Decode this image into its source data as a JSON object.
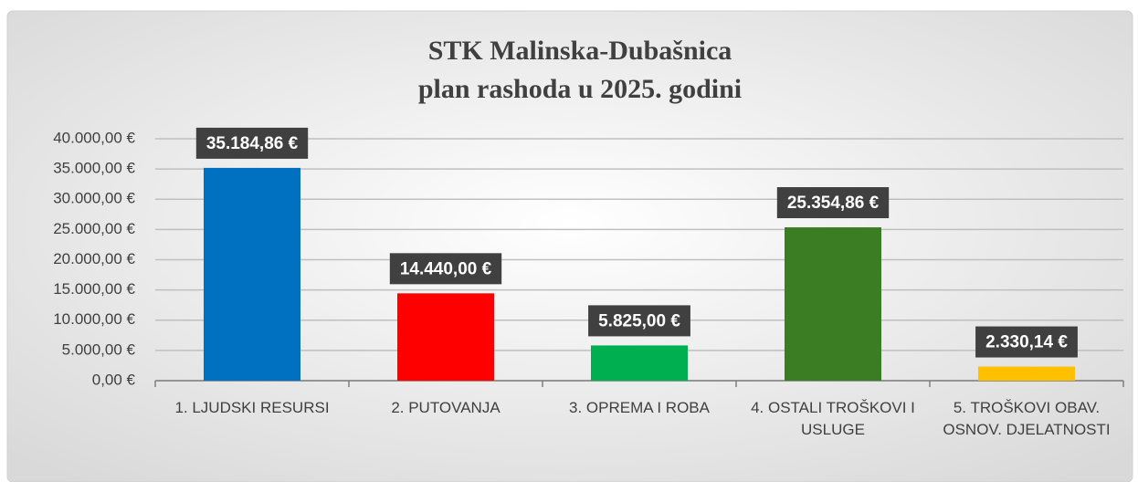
{
  "chart_data": {
    "type": "bar",
    "title": [
      "STK Malinska-Dubašnica",
      "plan rashoda u 2025. godini"
    ],
    "categories": [
      "1. LJUDSKI RESURSI",
      "2. PUTOVANJA",
      "3. OPREMA I ROBA",
      "4. OSTALI TROŠKOVI I USLUGE",
      "5. TROŠKOVI OBAV. OSNOV. DJELATNOSTI"
    ],
    "values": [
      35184.86,
      14440,
      5825,
      25354.86,
      2330.14
    ],
    "value_labels": [
      "35.184,86 €",
      "14.440,00 €",
      "5.825,00 €",
      "25.354,86 €",
      "2.330,14 €"
    ],
    "colors": [
      "#0070c0",
      "#ff0000",
      "#00b050",
      "#3a7d22",
      "#ffc000"
    ],
    "ylim": [
      0,
      40000
    ],
    "yticks": [
      {
        "value": 0,
        "label": "0,00 €"
      },
      {
        "value": 5000,
        "label": "5.000,00 €"
      },
      {
        "value": 10000,
        "label": "10.000,00 €"
      },
      {
        "value": 15000,
        "label": "15.000,00 €"
      },
      {
        "value": 20000,
        "label": "20.000,00 €"
      },
      {
        "value": 25000,
        "label": "25.000,00 €"
      },
      {
        "value": 30000,
        "label": "30.000,00 €"
      },
      {
        "value": 35000,
        "label": "35.000,00 €"
      },
      {
        "value": 40000,
        "label": "40.000,00 €"
      }
    ],
    "grid": true
  }
}
